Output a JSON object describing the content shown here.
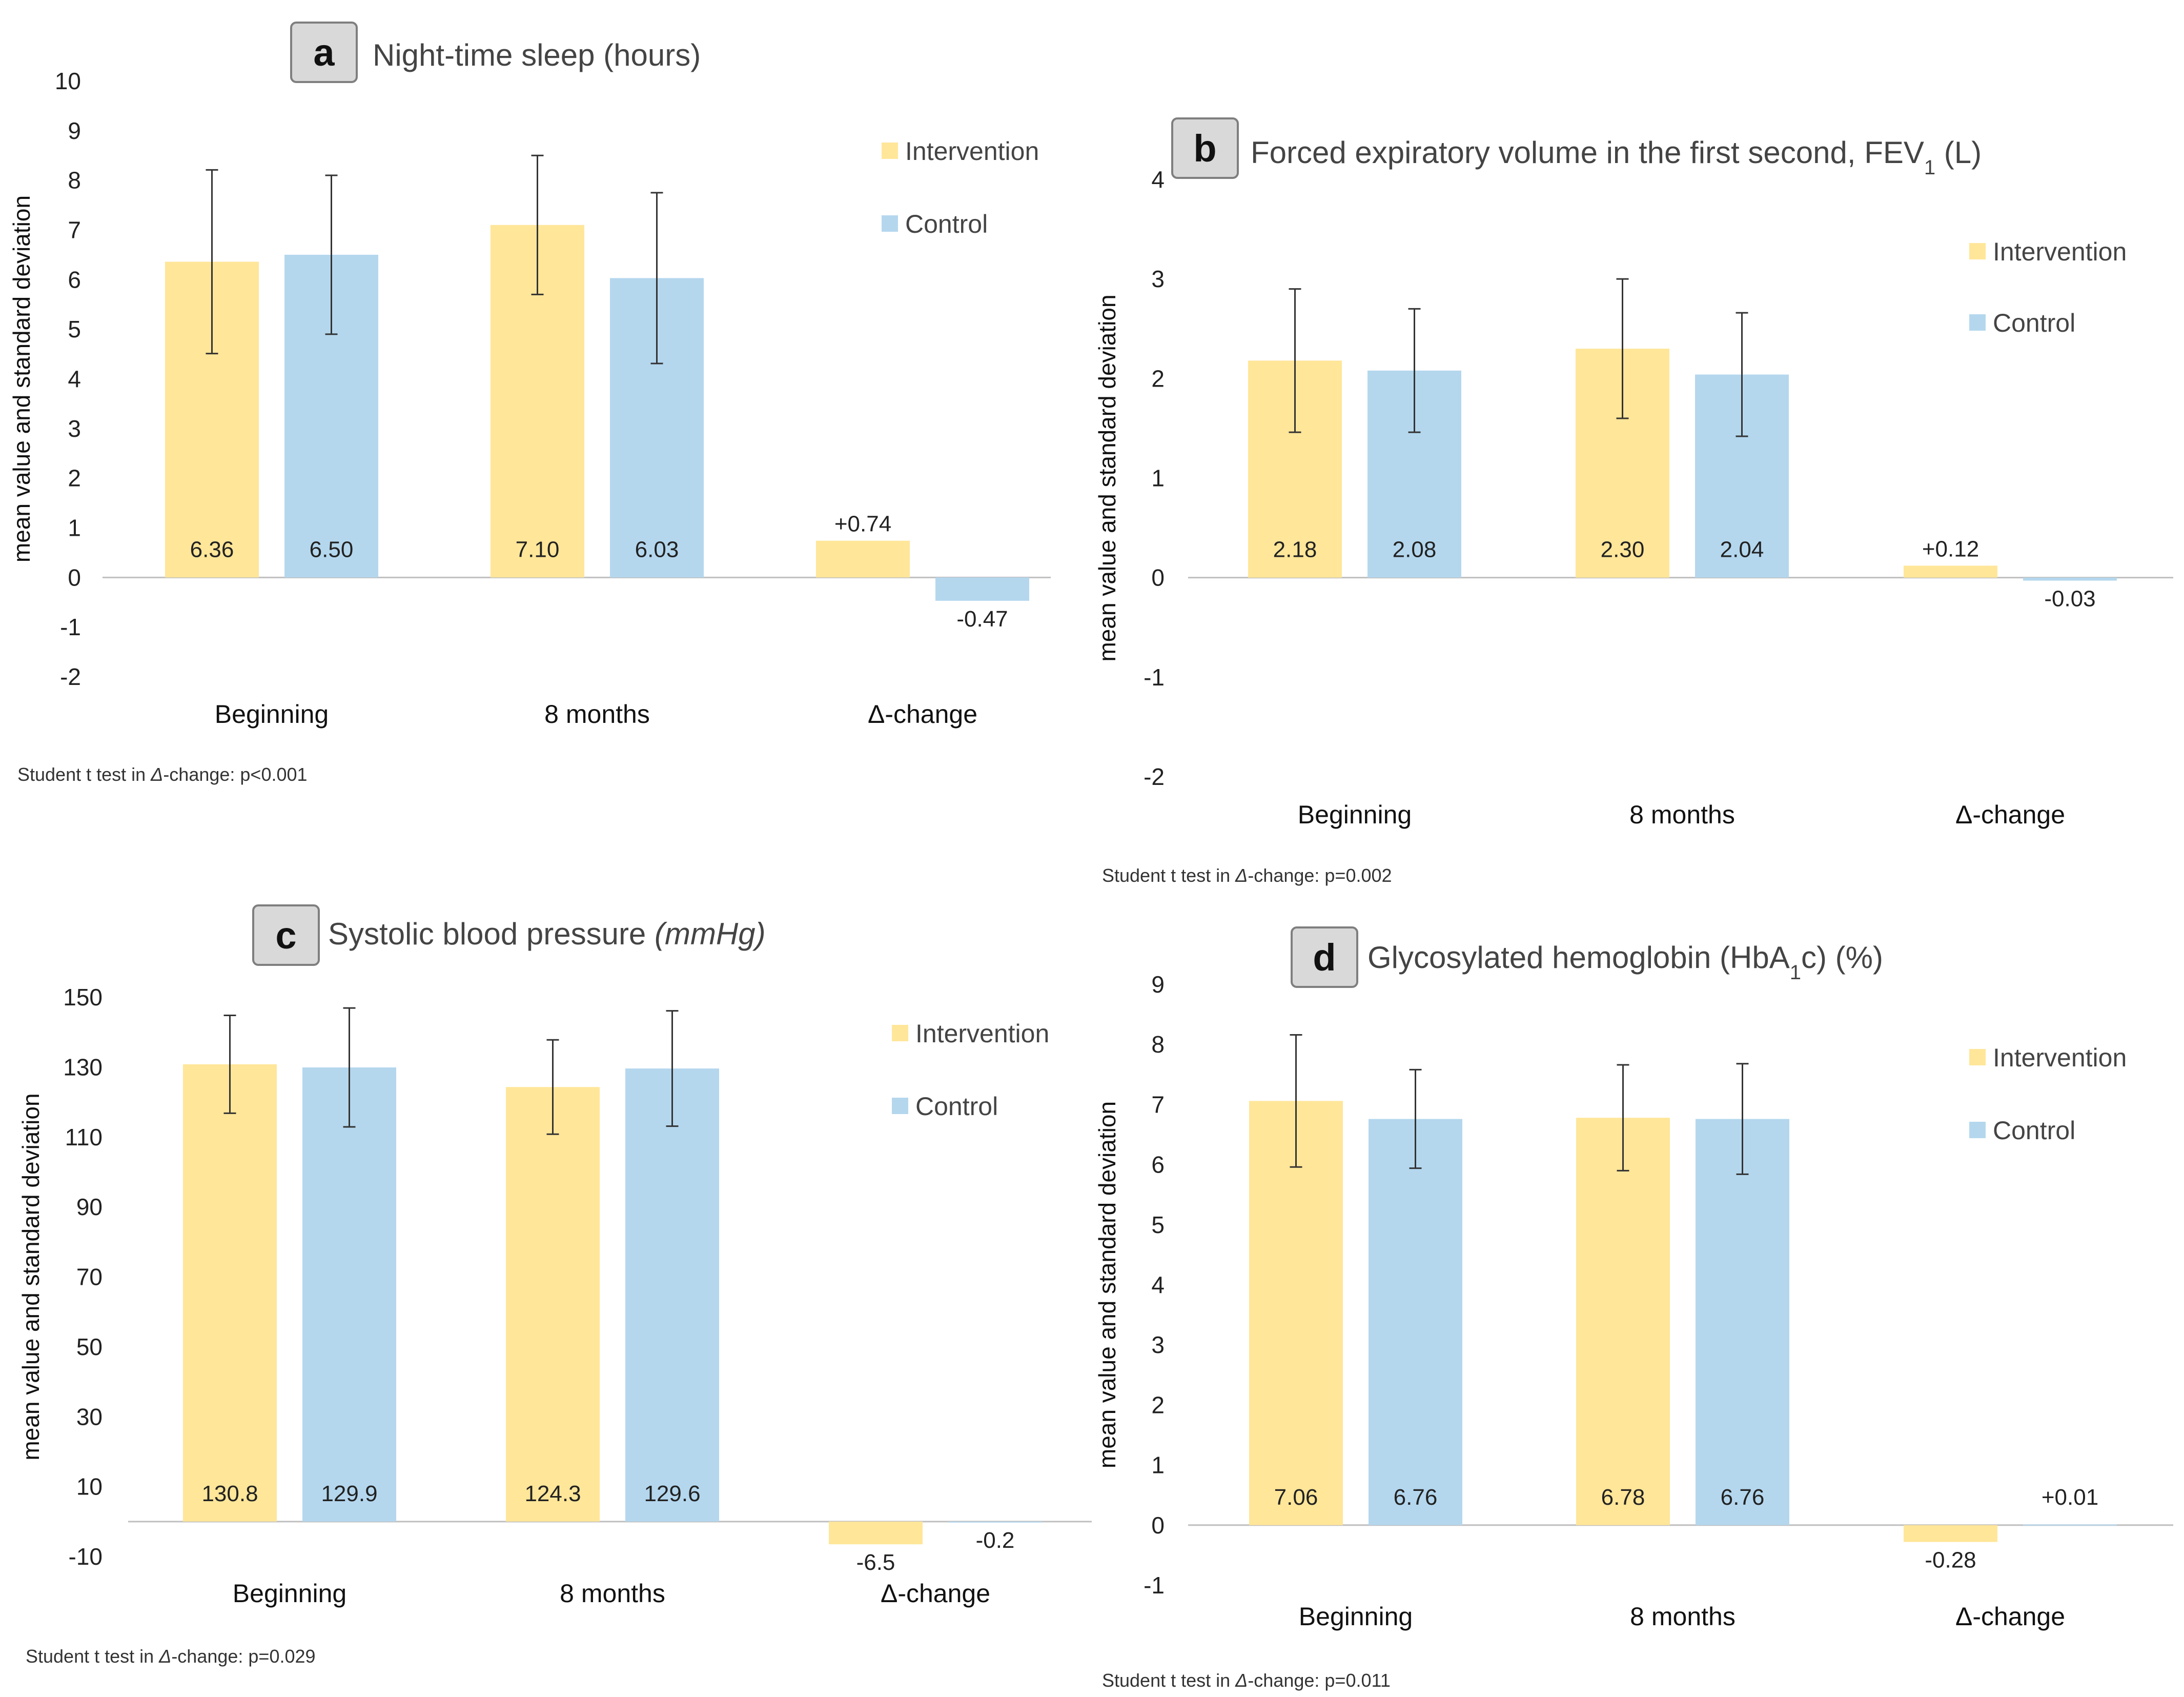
{
  "colors": {
    "intervention": "#FFE699",
    "control": "#B4D7EE",
    "errorbar": "#333333",
    "axis": "#BFBFBF"
  },
  "chart_data": [
    {
      "type": "bar",
      "panel": "a",
      "title": "Night-time sleep (hours)",
      "title_parts": [
        {
          "text": "Night-time sleep (hours)",
          "italic": false
        }
      ],
      "ylabel": "mean value and standard deviation",
      "ylim": [
        -2,
        10
      ],
      "yticks": [
        -2,
        -1,
        0,
        1,
        2,
        3,
        4,
        5,
        6,
        7,
        8,
        9,
        10
      ],
      "categories": [
        "Beginning",
        "8 months",
        "Δ-change"
      ],
      "series": [
        {
          "name": "Intervention",
          "values": [
            6.36,
            7.1,
            0.74
          ],
          "sd": [
            1.85,
            1.4,
            null
          ],
          "labels": [
            "6.36",
            "7.10",
            "+0.74"
          ]
        },
        {
          "name": "Control",
          "values": [
            6.5,
            6.03,
            -0.47
          ],
          "sd": [
            1.6,
            1.72,
            null
          ],
          "labels": [
            "6.50",
            "6.03",
            "-0.47"
          ]
        }
      ],
      "legend": [
        "Intervention",
        "Control"
      ],
      "note_prefix": "Student t test in ",
      "note_delta": "Δ",
      "note_suffix": "-change: p<0.001"
    },
    {
      "type": "bar",
      "panel": "b",
      "title": "Forced expiratory volume in the first second, FEV1 (L)",
      "title_parts": [
        {
          "text": "Forced expiratory volume in the first second, FEV",
          "italic": false
        },
        {
          "text": "1",
          "sub": true
        },
        {
          "text": " (L)",
          "italic": false
        }
      ],
      "ylabel": "mean value and standard deviation",
      "ylim": [
        -2,
        4
      ],
      "yticks": [
        -2,
        -1,
        0,
        1,
        2,
        3,
        4
      ],
      "categories": [
        "Beginning",
        "8 months",
        "Δ-change"
      ],
      "series": [
        {
          "name": "Intervention",
          "values": [
            2.18,
            2.3,
            0.12
          ],
          "sd": [
            0.72,
            0.7,
            null
          ],
          "labels": [
            "2.18",
            "2.30",
            "+0.12"
          ]
        },
        {
          "name": "Control",
          "values": [
            2.08,
            2.04,
            -0.03
          ],
          "sd": [
            0.62,
            0.62,
            null
          ],
          "labels": [
            "2.08",
            "2.04",
            "-0.03"
          ]
        }
      ],
      "legend": [
        "Intervention",
        "Control"
      ],
      "note_prefix": "Student t test in ",
      "note_delta": "Δ",
      "note_suffix": "-change: p=0.002"
    },
    {
      "type": "bar",
      "panel": "c",
      "title": "Systolic blood pressure (mmHg)",
      "title_parts": [
        {
          "text": "Systolic blood pressure ",
          "italic": false
        },
        {
          "text": "(mmHg)",
          "italic": true
        }
      ],
      "ylabel": "mean value and standard deviation",
      "ylim": [
        -10,
        150
      ],
      "yticks": [
        -10,
        10,
        30,
        50,
        70,
        90,
        110,
        130,
        150
      ],
      "categories": [
        "Beginning",
        "8 months",
        "Δ-change"
      ],
      "series": [
        {
          "name": "Intervention",
          "values": [
            130.8,
            124.3,
            -6.5
          ],
          "sd": [
            14,
            13.5,
            null
          ],
          "labels": [
            "130.8",
            "124.3",
            "-6.5"
          ]
        },
        {
          "name": "Control",
          "values": [
            129.9,
            129.6,
            -0.2
          ],
          "sd": [
            17,
            16.5,
            null
          ],
          "labels": [
            "129.9",
            "129.6",
            "-0.2"
          ]
        }
      ],
      "legend": [
        "Intervention",
        "Control"
      ],
      "note_prefix": "Student t test in ",
      "note_delta": "Δ",
      "note_suffix": "-change: p=0.029"
    },
    {
      "type": "bar",
      "panel": "d",
      "title": "Glycosylated hemoglobin (HbA1c) (%)",
      "title_parts": [
        {
          "text": "Glycosylated hemoglobin (HbA",
          "italic": false
        },
        {
          "text": "1",
          "sub": true
        },
        {
          "text": "c) (%)",
          "italic": false
        }
      ],
      "ylabel": "mean value and standard deviation",
      "ylim": [
        -1,
        9
      ],
      "yticks": [
        -1,
        0,
        1,
        2,
        3,
        4,
        5,
        6,
        7,
        8,
        9
      ],
      "categories": [
        "Beginning",
        "8 months",
        "Δ-change"
      ],
      "series": [
        {
          "name": "Intervention",
          "values": [
            7.06,
            6.78,
            -0.28
          ],
          "sd": [
            1.1,
            0.88,
            null
          ],
          "labels": [
            "7.06",
            "6.78",
            "-0.28"
          ]
        },
        {
          "name": "Control",
          "values": [
            6.76,
            6.76,
            0.01
          ],
          "sd": [
            0.82,
            0.92,
            null
          ],
          "labels": [
            "6.76",
            "6.76",
            "+0.01"
          ]
        }
      ],
      "legend": [
        "Intervention",
        "Control"
      ],
      "note_prefix": "Student t test in ",
      "note_delta": "Δ",
      "note_suffix": "-change: p=0.011"
    }
  ]
}
